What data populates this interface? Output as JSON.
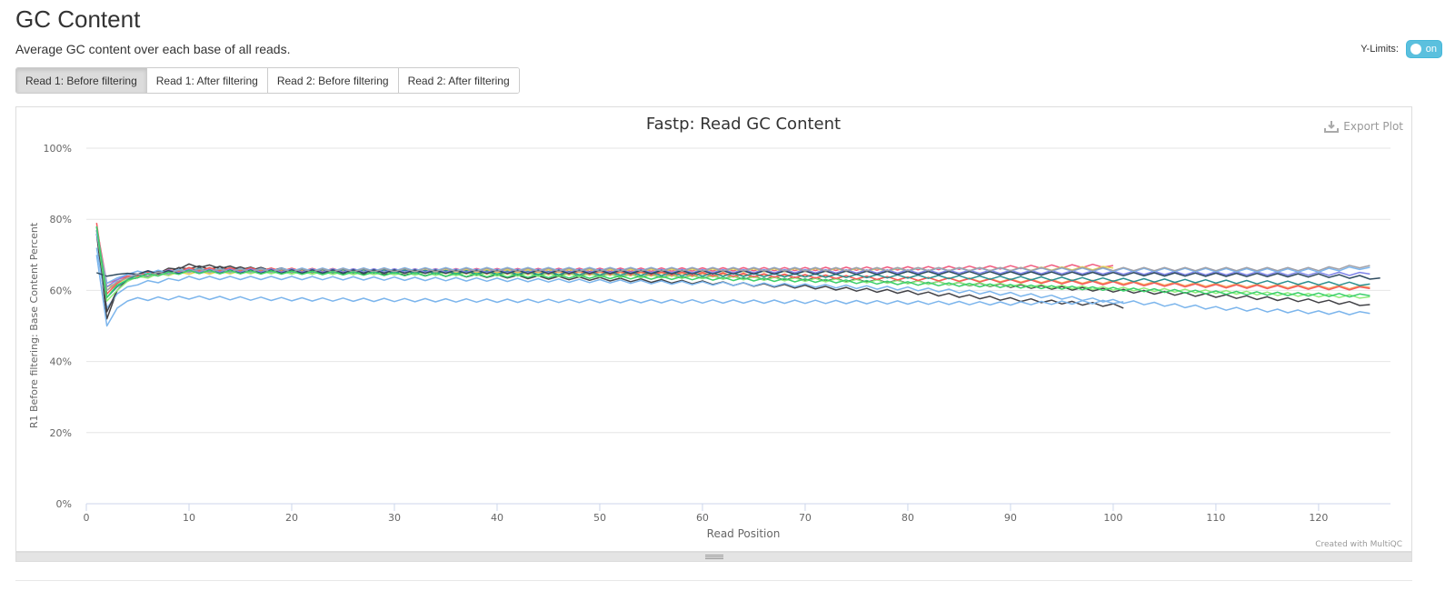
{
  "header": {
    "title": "GC Content",
    "subtitle": "Average GC content over each base of all reads.",
    "ylimits_label": "Y-Limits:",
    "ylimits_toggle": "on"
  },
  "tabs": [
    {
      "label": "Read 1: Before filtering",
      "active": true
    },
    {
      "label": "Read 1: After filtering",
      "active": false
    },
    {
      "label": "Read 2: Before filtering",
      "active": false
    },
    {
      "label": "Read 2: After filtering",
      "active": false
    }
  ],
  "plot": {
    "export_label": "Export Plot",
    "credit": "Created with MultiQC"
  },
  "colors": {
    "accent": "#5bc0de",
    "grid": "#e6e6e6"
  },
  "chart_data": {
    "type": "line",
    "title": "Fastp: Read GC Content",
    "xlabel": "Read Position",
    "ylabel": "R1 Before filtering: Base Content Percent",
    "xlim": [
      0,
      127
    ],
    "ylim": [
      0,
      100
    ],
    "xticks": [
      0,
      10,
      20,
      30,
      40,
      50,
      60,
      70,
      80,
      90,
      100,
      110,
      120
    ],
    "yticks": [
      0,
      20,
      40,
      60,
      80,
      100
    ],
    "ytick_suffix": "%",
    "grid": true,
    "legend": "none",
    "series": [
      {
        "color": "#f15c80",
        "x": [
          1,
          2,
          3,
          4,
          5,
          10,
          20,
          30,
          40,
          50,
          60,
          70,
          80,
          90,
          100
        ],
        "y": [
          78,
          62,
          63,
          64,
          64.5,
          65.5,
          65.5,
          65.6,
          65.7,
          65.8,
          65.9,
          66,
          66.2,
          66.5,
          67
        ]
      },
      {
        "color": "#e4d354",
        "x": [
          1,
          2,
          3,
          4,
          5,
          10,
          20,
          30,
          40,
          50,
          60,
          70,
          80,
          90,
          100
        ],
        "y": [
          77,
          61,
          62,
          63.5,
          64,
          65,
          65.2,
          65.3,
          65.4,
          65.5,
          65.6,
          65.7,
          65.8,
          66,
          66.3
        ]
      },
      {
        "color": "#434348",
        "x": [
          1,
          2,
          3,
          4,
          5,
          10,
          20,
          30,
          40,
          50,
          60,
          70,
          80,
          90,
          100,
          101
        ],
        "y": [
          76,
          52,
          60,
          63,
          64,
          67,
          65.5,
          64.8,
          64,
          63.2,
          62.2,
          61,
          59.5,
          57.5,
          55.8,
          55
        ]
      },
      {
        "color": "#7cb5ec",
        "x": [
          1,
          2,
          3,
          4,
          5,
          10,
          20,
          30,
          40,
          50,
          60,
          70,
          80,
          90,
          100,
          101
        ],
        "y": [
          70,
          50,
          55,
          57,
          57.5,
          58,
          57.5,
          57.3,
          57.1,
          57,
          56.9,
          56.8,
          56.6,
          56.3,
          56.8,
          56.8
        ]
      },
      {
        "color": "#7cb5ec",
        "x": [
          1,
          2,
          3,
          4,
          5,
          10,
          20,
          30,
          40,
          50,
          60,
          70,
          80,
          90,
          100,
          110,
          120,
          125
        ],
        "y": [
          72,
          55,
          59,
          61,
          62,
          63.5,
          63.5,
          63.3,
          63,
          62.6,
          62,
          61.4,
          60.5,
          59,
          57,
          55,
          53.8,
          53.5
        ]
      },
      {
        "color": "#434348",
        "x": [
          1,
          2,
          3,
          4,
          5,
          10,
          20,
          30,
          40,
          50,
          60,
          70,
          80,
          90,
          100,
          110,
          120,
          125
        ],
        "y": [
          77,
          54,
          60,
          63,
          64,
          66.5,
          65.8,
          65.3,
          64.8,
          64.3,
          63.8,
          63.2,
          62.4,
          61.3,
          60,
          58.5,
          57,
          56
        ]
      },
      {
        "color": "#f7a35c",
        "x": [
          1,
          2,
          3,
          4,
          5,
          10,
          20,
          30,
          40,
          50,
          60,
          70,
          80,
          90,
          100,
          110,
          120,
          125
        ],
        "y": [
          78,
          60,
          62,
          64,
          64.5,
          65.8,
          65.5,
          65.3,
          65,
          64.7,
          64.3,
          63.9,
          63.3,
          62.8,
          62.3,
          61.5,
          61,
          60.8
        ]
      },
      {
        "color": "#90ed7d",
        "x": [
          1,
          2,
          3,
          4,
          5,
          10,
          20,
          30,
          40,
          50,
          60,
          70,
          80,
          90,
          100,
          110,
          120,
          125
        ],
        "y": [
          77,
          57,
          60,
          62.5,
          63.5,
          65.5,
          65,
          64.8,
          64.5,
          64.2,
          63.7,
          63,
          62.3,
          61.5,
          60.5,
          59.6,
          58.6,
          58.2
        ]
      },
      {
        "color": "#f45b5b",
        "x": [
          1,
          2,
          3,
          4,
          5,
          10,
          20,
          30,
          40,
          50,
          60,
          70,
          80,
          90,
          100,
          110,
          120,
          125
        ],
        "y": [
          79,
          59,
          62,
          64,
          64.5,
          66,
          65.8,
          65.5,
          65.3,
          65,
          64.6,
          64,
          63.3,
          62.6,
          62,
          61.2,
          60.7,
          60.5
        ]
      },
      {
        "color": "#2b908f",
        "x": [
          1,
          2,
          3,
          4,
          5,
          10,
          20,
          30,
          40,
          50,
          60,
          70,
          80,
          90,
          100,
          110,
          120,
          125
        ],
        "y": [
          78,
          58,
          61,
          63,
          64,
          65.8,
          65.5,
          65.3,
          65,
          64.8,
          64.5,
          64.2,
          63.9,
          63.5,
          63,
          62.5,
          62,
          61.8
        ]
      },
      {
        "color": "#8085e9",
        "x": [
          1,
          2,
          3,
          4,
          5,
          10,
          20,
          30,
          40,
          50,
          60,
          70,
          80,
          90,
          100,
          110,
          120,
          125
        ],
        "y": [
          77,
          61,
          63,
          64.5,
          65,
          65.5,
          65.6,
          65.6,
          65.5,
          65.5,
          65.4,
          65.4,
          65.3,
          65.2,
          65,
          64.8,
          64.7,
          64.6
        ]
      },
      {
        "color": "#7cb5ec",
        "x": [
          1,
          2,
          3,
          4,
          5,
          10,
          20,
          30,
          40,
          50,
          60,
          70,
          80,
          90,
          100,
          110,
          120,
          125
        ],
        "y": [
          76,
          62,
          63.5,
          64.5,
          65,
          65.6,
          65.8,
          65.9,
          66,
          66,
          66,
          66,
          65.9,
          65.9,
          65.8,
          65.7,
          65.6,
          66.5
        ]
      },
      {
        "color": "#2f4b5f",
        "x": [
          1,
          2,
          3,
          4,
          5,
          10,
          20,
          30,
          40,
          50,
          60,
          70,
          80,
          90,
          100,
          110,
          120,
          126
        ],
        "y": [
          65,
          64,
          64.5,
          64.8,
          65,
          65.2,
          65.3,
          65.3,
          65.2,
          65.2,
          65.1,
          65,
          64.9,
          64.8,
          64.6,
          64.4,
          64.2,
          63.5
        ]
      },
      {
        "color": "#a0a0a8",
        "x": [
          1,
          2,
          3,
          4,
          5,
          10,
          20,
          30,
          40,
          50,
          60,
          70,
          80,
          90,
          100,
          110,
          120,
          125
        ],
        "y": [
          78,
          60,
          62.5,
          63.5,
          64.2,
          65.5,
          65.6,
          65.7,
          65.8,
          65.8,
          65.9,
          65.9,
          66,
          66,
          66,
          66,
          66,
          67
        ]
      },
      {
        "color": "#3ccf6b",
        "x": [
          1,
          2,
          3,
          4,
          5,
          10,
          20,
          30,
          40,
          50,
          60,
          70,
          80,
          90,
          100,
          110,
          120,
          125
        ],
        "y": [
          78,
          58,
          61.5,
          63,
          64,
          65.2,
          65,
          64.6,
          64.2,
          63.8,
          63.4,
          62.8,
          62,
          61.2,
          60.4,
          59.4,
          58.8,
          58.5
        ]
      }
    ]
  }
}
